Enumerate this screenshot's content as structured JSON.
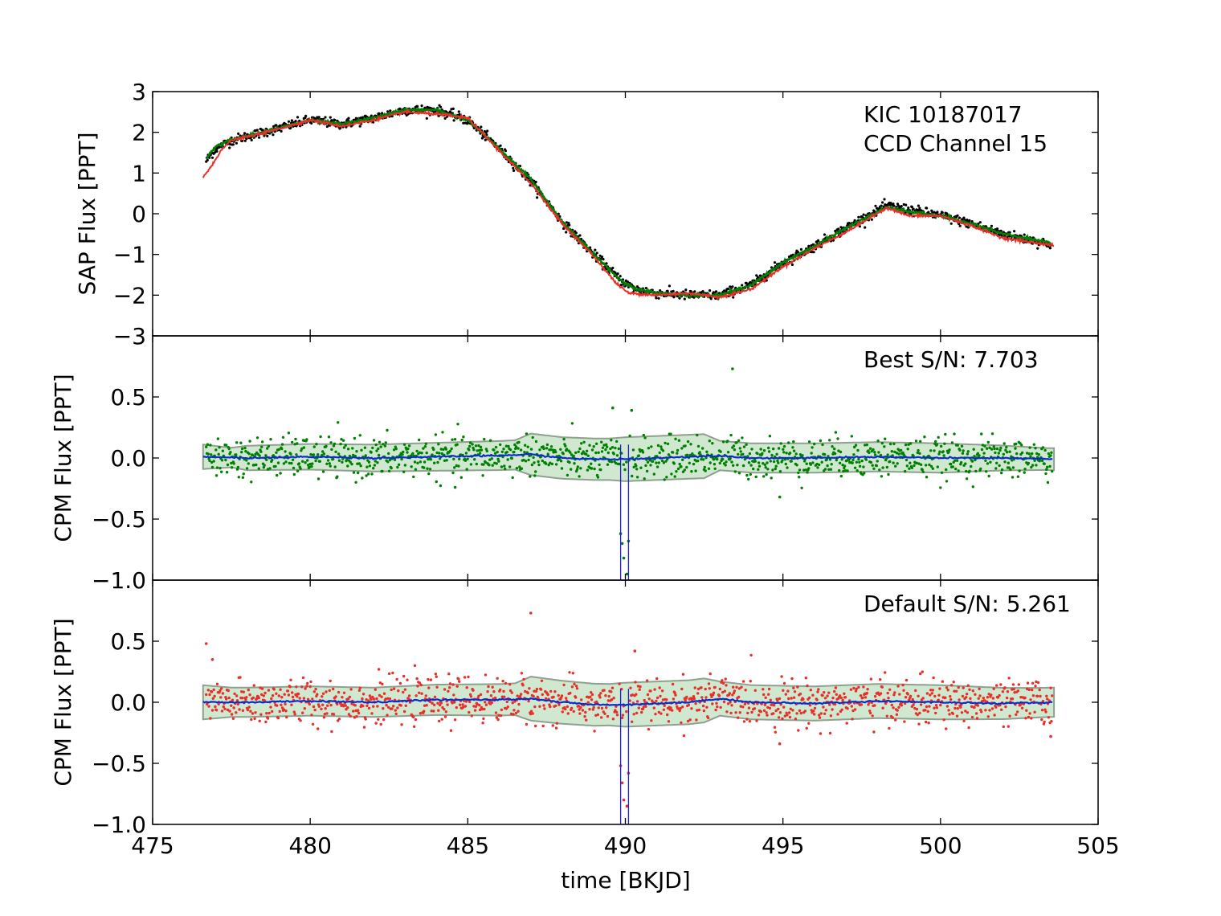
{
  "figure": {
    "xlabel": "time [BKJD]",
    "colors": {
      "black_points": "#000000",
      "green": "#008000",
      "red": "#e8302a",
      "blue_model": "#0b2ccf",
      "band_fill": "#a9d6a9",
      "band_edge": "#8fa08f",
      "transit_lines": "#1f1fd0"
    }
  },
  "chart_data": [
    {
      "type": "line",
      "panel": "top",
      "ylabel": "SAP Flux [PPT]",
      "annotation_lines": [
        "KIC 10187017",
        "CCD Channel 15"
      ],
      "xlim": [
        475,
        505
      ],
      "ylim": [
        -3,
        3
      ],
      "x_ticks": [
        475,
        480,
        485,
        490,
        495,
        500,
        505
      ],
      "y_ticks": [
        3,
        2,
        1,
        0,
        -1,
        -2,
        -3
      ],
      "y_tick_labels": [
        "3",
        "2",
        "1",
        "0",
        "−1",
        "−2",
        "−3"
      ],
      "series": [
        {
          "kind": "scatter",
          "color": "black",
          "curve_x": [
            476.7,
            477.0,
            477.5,
            478.5,
            480.0,
            481.0,
            482.0,
            483.0,
            484.0,
            485.0,
            486.0,
            487.0,
            488.0,
            489.0,
            489.8,
            490.3,
            491.0,
            492.0,
            493.0,
            494.0,
            495.0,
            496.0,
            497.0,
            498.3,
            499.0,
            500.0,
            501.0,
            502.0,
            503.5
          ],
          "curve_y": [
            1.3,
            1.6,
            1.8,
            2.0,
            2.3,
            2.2,
            2.35,
            2.55,
            2.55,
            2.3,
            1.6,
            0.8,
            -0.2,
            -1.0,
            -1.6,
            -1.85,
            -1.95,
            -2.0,
            -2.0,
            -1.75,
            -1.2,
            -0.8,
            -0.35,
            0.2,
            0.1,
            -0.05,
            -0.25,
            -0.5,
            -0.75
          ],
          "noise": 0.06
        },
        {
          "kind": "line",
          "color": "green",
          "x": [
            476.7,
            477.0,
            477.5,
            478.5,
            480.0,
            481.0,
            482.0,
            483.0,
            484.0,
            485.0,
            486.0,
            487.0,
            488.0,
            489.0,
            489.8,
            490.3,
            491.0,
            492.0,
            493.0,
            494.0,
            495.0,
            496.0,
            497.0,
            498.3,
            499.0,
            500.0,
            501.0,
            502.0,
            503.5
          ],
          "y": [
            1.35,
            1.65,
            1.82,
            2.0,
            2.3,
            2.2,
            2.35,
            2.55,
            2.55,
            2.3,
            1.6,
            0.85,
            -0.2,
            -1.0,
            -1.6,
            -1.85,
            -1.95,
            -2.0,
            -2.0,
            -1.75,
            -1.2,
            -0.8,
            -0.35,
            0.15,
            0.05,
            -0.05,
            -0.25,
            -0.5,
            -0.72
          ]
        },
        {
          "kind": "line",
          "color": "red",
          "x": [
            476.6,
            476.9,
            477.2,
            477.5,
            478.5,
            480.0,
            481.0,
            482.0,
            483.0,
            484.0,
            485.0,
            486.0,
            487.0,
            488.0,
            489.0,
            489.7,
            490.1,
            491.0,
            492.0,
            493.0,
            494.0,
            495.0,
            496.0,
            497.0,
            498.3,
            499.0,
            500.0,
            501.0,
            502.0,
            503.6
          ],
          "y": [
            0.9,
            1.2,
            1.6,
            1.8,
            1.98,
            2.3,
            2.15,
            2.3,
            2.5,
            2.45,
            2.35,
            1.55,
            0.75,
            -0.25,
            -1.05,
            -1.7,
            -1.95,
            -2.0,
            -1.95,
            -2.05,
            -1.85,
            -1.3,
            -0.85,
            -0.45,
            0.15,
            -0.05,
            -0.05,
            -0.3,
            -0.6,
            -0.78
          ]
        }
      ]
    },
    {
      "type": "scatter",
      "panel": "middle",
      "ylabel": "CPM Flux [PPT]",
      "annotation": "Best S/N: 7.703",
      "xlim": [
        475,
        505
      ],
      "ylim": [
        -1.0,
        1.0
      ],
      "y_ticks": [
        0.5,
        0.0,
        -0.5,
        -1.0
      ],
      "y_tick_labels": [
        "0.5",
        "0.0",
        "−0.5",
        "−1.0"
      ],
      "point_color": "green",
      "noise": 0.08,
      "band_x": [
        476.6,
        477.5,
        478.0,
        482.0,
        486.5,
        487.0,
        489.5,
        490.0,
        490.5,
        492.5,
        493.0,
        494.0,
        496.0,
        500.0,
        503.3,
        503.6
      ],
      "band_half_width": [
        0.1,
        0.08,
        0.1,
        0.11,
        0.12,
        0.17,
        0.17,
        0.18,
        0.18,
        0.18,
        0.12,
        0.12,
        0.12,
        0.12,
        0.09,
        0.09
      ],
      "model_x": [
        476.6,
        478.0,
        480.0,
        482.0,
        484.0,
        486.0,
        487.0,
        488.0,
        489.0,
        490.0,
        491.0,
        492.0,
        493.0,
        494.0,
        496.0,
        498.0,
        500.0,
        502.0,
        503.6
      ],
      "model_y": [
        0.01,
        0.0,
        0.01,
        0.0,
        0.01,
        0.02,
        0.03,
        0.0,
        -0.01,
        -0.01,
        0.0,
        0.01,
        0.02,
        0.0,
        0.0,
        0.01,
        0.0,
        0.0,
        -0.01
      ],
      "transit_lines_x": [
        489.85,
        490.1
      ],
      "transit_points": [
        [
          489.85,
          -0.62
        ],
        [
          489.95,
          -0.82
        ],
        [
          489.9,
          -0.7
        ],
        [
          490.1,
          -0.68
        ],
        [
          490.05,
          -0.95
        ]
      ],
      "outlier_points": [
        [
          493.4,
          0.73
        ],
        [
          489.6,
          0.41
        ],
        [
          490.2,
          0.39
        ],
        [
          494.9,
          -0.32
        ],
        [
          484.6,
          -0.24
        ]
      ]
    },
    {
      "type": "scatter",
      "panel": "bottom",
      "ylabel": "CPM Flux [PPT]",
      "annotation": "Default S/N: 5.261",
      "xlim": [
        475,
        505
      ],
      "ylim": [
        -1.0,
        1.0
      ],
      "y_ticks": [
        0.5,
        0.0,
        -0.5,
        -1.0
      ],
      "y_tick_labels": [
        "0.5",
        "0.0",
        "−0.5",
        "−1.0"
      ],
      "point_color": "red",
      "noise": 0.09,
      "band_x": [
        476.6,
        477.5,
        478.0,
        482.0,
        486.5,
        487.0,
        489.5,
        490.0,
        490.5,
        492.5,
        493.0,
        494.0,
        496.0,
        500.0,
        503.3,
        503.6
      ],
      "band_half_width": [
        0.14,
        0.12,
        0.12,
        0.12,
        0.13,
        0.18,
        0.17,
        0.18,
        0.18,
        0.18,
        0.14,
        0.14,
        0.14,
        0.14,
        0.12,
        0.12
      ],
      "model_x": [
        476.6,
        478.0,
        480.0,
        482.0,
        484.0,
        486.0,
        487.0,
        488.0,
        489.0,
        490.0,
        491.0,
        492.0,
        493.0,
        494.0,
        496.0,
        498.0,
        500.0,
        502.0,
        503.6
      ],
      "model_y": [
        0.0,
        0.0,
        0.01,
        0.0,
        0.02,
        0.02,
        0.03,
        0.0,
        -0.02,
        -0.02,
        -0.01,
        0.0,
        0.03,
        0.0,
        -0.01,
        0.01,
        0.0,
        -0.01,
        0.0
      ],
      "transit_lines_x": [
        489.85,
        490.1
      ],
      "transit_points": [
        [
          489.85,
          -0.52
        ],
        [
          489.95,
          -0.8
        ],
        [
          489.9,
          -0.66
        ],
        [
          490.1,
          -0.58
        ],
        [
          490.05,
          -0.85
        ]
      ],
      "outlier_points": [
        [
          487.0,
          0.73
        ],
        [
          476.7,
          0.48
        ],
        [
          490.3,
          0.42
        ],
        [
          494.9,
          -0.34
        ],
        [
          503.5,
          -0.28
        ],
        [
          476.9,
          0.35
        ]
      ]
    }
  ]
}
